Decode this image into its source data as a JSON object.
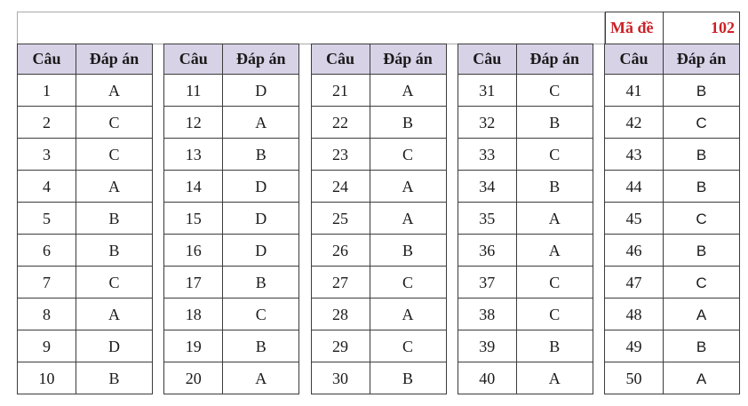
{
  "header": {
    "ma_de_label": "Mã đề",
    "code": "102"
  },
  "table": {
    "col_question": "Câu",
    "col_answer": "Đáp án",
    "groups": [
      {
        "rows": [
          {
            "q": "1",
            "a": "A"
          },
          {
            "q": "2",
            "a": "C"
          },
          {
            "q": "3",
            "a": "C"
          },
          {
            "q": "4",
            "a": "A"
          },
          {
            "q": "5",
            "a": "B"
          },
          {
            "q": "6",
            "a": "B"
          },
          {
            "q": "7",
            "a": "C"
          },
          {
            "q": "8",
            "a": "A"
          },
          {
            "q": "9",
            "a": "D"
          },
          {
            "q": "10",
            "a": "B"
          }
        ]
      },
      {
        "rows": [
          {
            "q": "11",
            "a": "D"
          },
          {
            "q": "12",
            "a": "A"
          },
          {
            "q": "13",
            "a": "B"
          },
          {
            "q": "14",
            "a": "D"
          },
          {
            "q": "15",
            "a": "D"
          },
          {
            "q": "16",
            "a": "D"
          },
          {
            "q": "17",
            "a": "B"
          },
          {
            "q": "18",
            "a": "C"
          },
          {
            "q": "19",
            "a": "B"
          },
          {
            "q": "20",
            "a": "A"
          }
        ]
      },
      {
        "rows": [
          {
            "q": "21",
            "a": "A"
          },
          {
            "q": "22",
            "a": "B"
          },
          {
            "q": "23",
            "a": "C"
          },
          {
            "q": "24",
            "a": "A"
          },
          {
            "q": "25",
            "a": "A"
          },
          {
            "q": "26",
            "a": "B"
          },
          {
            "q": "27",
            "a": "C"
          },
          {
            "q": "28",
            "a": "A"
          },
          {
            "q": "29",
            "a": "C"
          },
          {
            "q": "30",
            "a": "B"
          }
        ]
      },
      {
        "rows": [
          {
            "q": "31",
            "a": "C"
          },
          {
            "q": "32",
            "a": "B"
          },
          {
            "q": "33",
            "a": "C"
          },
          {
            "q": "34",
            "a": "B"
          },
          {
            "q": "35",
            "a": "A"
          },
          {
            "q": "36",
            "a": "A"
          },
          {
            "q": "37",
            "a": "C"
          },
          {
            "q": "38",
            "a": "C"
          },
          {
            "q": "39",
            "a": "B"
          },
          {
            "q": "40",
            "a": "A"
          }
        ]
      },
      {
        "rows": [
          {
            "q": "41",
            "a": "B"
          },
          {
            "q": "42",
            "a": "C"
          },
          {
            "q": "43",
            "a": "B"
          },
          {
            "q": "44",
            "a": "B"
          },
          {
            "q": "45",
            "a": "C"
          },
          {
            "q": "46",
            "a": "B"
          },
          {
            "q": "47",
            "a": "C"
          },
          {
            "q": "48",
            "a": "A"
          },
          {
            "q": "49",
            "a": "B"
          },
          {
            "q": "50",
            "a": "A"
          }
        ]
      }
    ]
  },
  "colors": {
    "header_bg": "#d8d2e7",
    "accent_red": "#cc2127",
    "border_dark": "#3c3c3c",
    "border_light": "#a9a9a9"
  }
}
